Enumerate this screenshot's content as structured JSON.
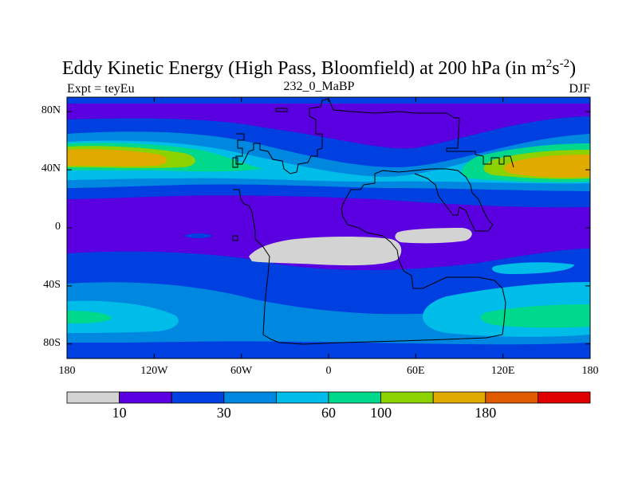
{
  "title": {
    "main": "Eddy Kinetic Energy (High Pass, Bloomfield) at 200 hPa (in m",
    "sup1": "2",
    "mid": "s",
    "sup2": "-2",
    "end": ")"
  },
  "subtitle": "232_0_MaBP",
  "left_label": "Expt = teyEu",
  "right_label": "DJF",
  "map": {
    "projection": "cylindrical-equidistant",
    "lon_range": [
      -180,
      180
    ],
    "lat_range": [
      -90,
      90
    ],
    "lon_ticks": [
      {
        "value": -180,
        "label": "180"
      },
      {
        "value": -120,
        "label": "120W"
      },
      {
        "value": -60,
        "label": "60W"
      },
      {
        "value": 0,
        "label": "0"
      },
      {
        "value": 60,
        "label": "60E"
      },
      {
        "value": 120,
        "label": "120E"
      },
      {
        "value": 180,
        "label": "180"
      }
    ],
    "lat_ticks": [
      {
        "value": 80,
        "label": "80N"
      },
      {
        "value": 40,
        "label": "40N"
      },
      {
        "value": 0,
        "label": "0"
      },
      {
        "value": -40,
        "label": "40S"
      },
      {
        "value": -80,
        "label": "80S"
      }
    ]
  },
  "colorbar": {
    "colors": [
      "#d3d3d3",
      "#5a00e0",
      "#0040e0",
      "#0088e0",
      "#00bce8",
      "#00d88c",
      "#8cd200",
      "#e0aa00",
      "#e05a00",
      "#e00000"
    ],
    "labels": [
      {
        "after_box": 1,
        "label": "10"
      },
      {
        "after_box": 3,
        "label": "30"
      },
      {
        "after_box": 5,
        "label": "60"
      },
      {
        "after_box": 6,
        "label": "100"
      },
      {
        "after_box": 8,
        "label": "180"
      }
    ]
  }
}
